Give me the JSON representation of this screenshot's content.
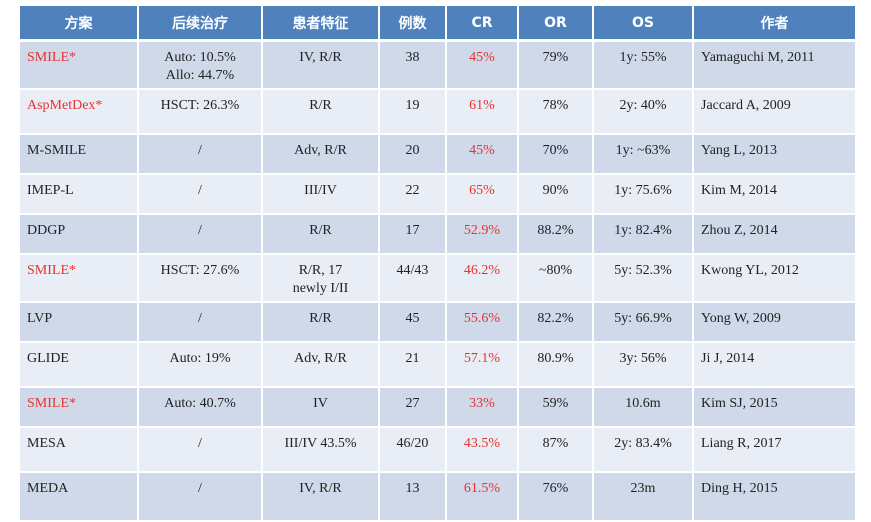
{
  "headers": [
    "方案",
    "后续治疗",
    "患者特征",
    "例数",
    "CR",
    "OR",
    "OS",
    "作者"
  ],
  "rows": [
    {
      "scheme": "SMILE*",
      "followup": [
        "Auto: 10.5%",
        "Allo:  44.7%"
      ],
      "features": "IV, R/R",
      "n": "38",
      "cr": "45%",
      "or": "79%",
      "os": "1y: 55%",
      "author": "Yamaguchi M, 2011"
    },
    {
      "scheme": "AspMetDex*",
      "followup": [
        "HSCT: 26.3%"
      ],
      "features": "R/R",
      "n": "19",
      "cr": "61%",
      "or": "78%",
      "os": "2y: 40%",
      "author": "Jaccard A, 2009"
    },
    {
      "scheme": "M-SMILE",
      "followup": [
        "/"
      ],
      "features": "Adv,  R/R",
      "n": "20",
      "cr": "45%",
      "or": "70%",
      "os": "1y: ~63%",
      "author": "Yang L, 2013"
    },
    {
      "scheme": "IMEP-L",
      "followup": [
        "/"
      ],
      "features": "III/IV",
      "n": "22",
      "cr": "65%",
      "or": "90%",
      "os": "1y: 75.6%",
      "author": "Kim M, 2014"
    },
    {
      "scheme": "DDGP",
      "followup": [
        "/"
      ],
      "features": "R/R",
      "n": "17",
      "cr": "52.9%",
      "or": "88.2%",
      "os": "1y: 82.4%",
      "author": "Zhou Z, 2014"
    },
    {
      "scheme": "SMILE*",
      "followup": [
        "HSCT: 27.6%"
      ],
      "features": [
        "R/R, 17",
        "newly I/II"
      ],
      "n": "44/43",
      "cr": "46.2%",
      "or": "~80%",
      "os": "5y: 52.3%",
      "author": "Kwong YL, 2012"
    },
    {
      "scheme": "LVP",
      "followup": [
        "/"
      ],
      "features": "R/R",
      "n": "45",
      "cr": "55.6%",
      "or": "82.2%",
      "os": "5y: 66.9%",
      "author": "Yong W, 2009"
    },
    {
      "scheme": "GLIDE",
      "followup": [
        "Auto: 19%"
      ],
      "features": "Adv,  R/R",
      "n": "21",
      "cr": "57.1%",
      "or": "80.9%",
      "os": "3y: 56%",
      "author": "Ji J, 2014"
    },
    {
      "scheme": "SMILE*",
      "followup": [
        "Auto: 40.7%"
      ],
      "features": "IV",
      "n": "27",
      "cr": "33%",
      "or": "59%",
      "os": "10.6m",
      "author": "Kim SJ, 2015"
    },
    {
      "scheme": "MESA",
      "followup": [
        "/"
      ],
      "features": "III/IV 43.5%",
      "n": "46/20",
      "cr": "43.5%",
      "or": "87%",
      "os": "2y: 83.4%",
      "author": "Liang R, 2017"
    },
    {
      "scheme": "MEDA",
      "followup": [
        "/"
      ],
      "features": "IV,   R/R",
      "n": "13",
      "cr": "61.5%",
      "or": "76%",
      "os": "23m",
      "author": "Ding H,  2015"
    }
  ],
  "colors": {
    "header_bg": "#4f81bd",
    "row_odd": "#d0d9ea",
    "row_even": "#e9edf5",
    "highlight": "#e8322e"
  }
}
